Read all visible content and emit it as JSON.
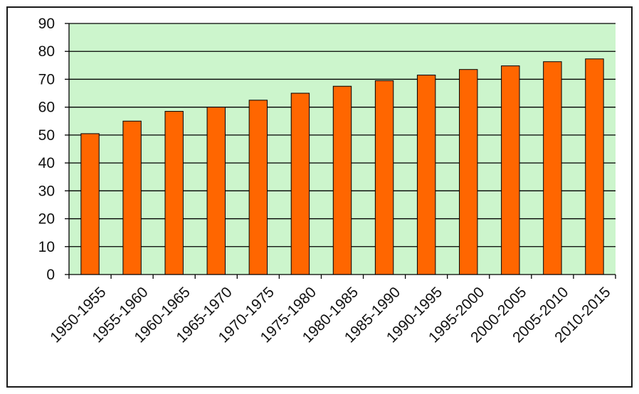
{
  "chart_data": {
    "type": "bar",
    "categories": [
      "1950-1955",
      "1955-1960",
      "1960-1965",
      "1965-1970",
      "1970-1975",
      "1975-1980",
      "1980-1985",
      "1985-1990",
      "1990-1995",
      "1995-2000",
      "2000-2005",
      "2005-2010",
      "2010-2015"
    ],
    "values": [
      50.5,
      55,
      58.5,
      60,
      62.5,
      65,
      67.5,
      69.5,
      71.5,
      73.5,
      74.8,
      76.3,
      77.3
    ],
    "ylim": [
      0,
      90
    ],
    "yticks": [
      0,
      10,
      20,
      30,
      40,
      50,
      60,
      70,
      80,
      90
    ],
    "grid": true,
    "colors": {
      "bar_fill": "#ff6600",
      "bar_stroke": "#000000",
      "plot_background": "#ccf5cc",
      "gridline": "#000000"
    }
  }
}
